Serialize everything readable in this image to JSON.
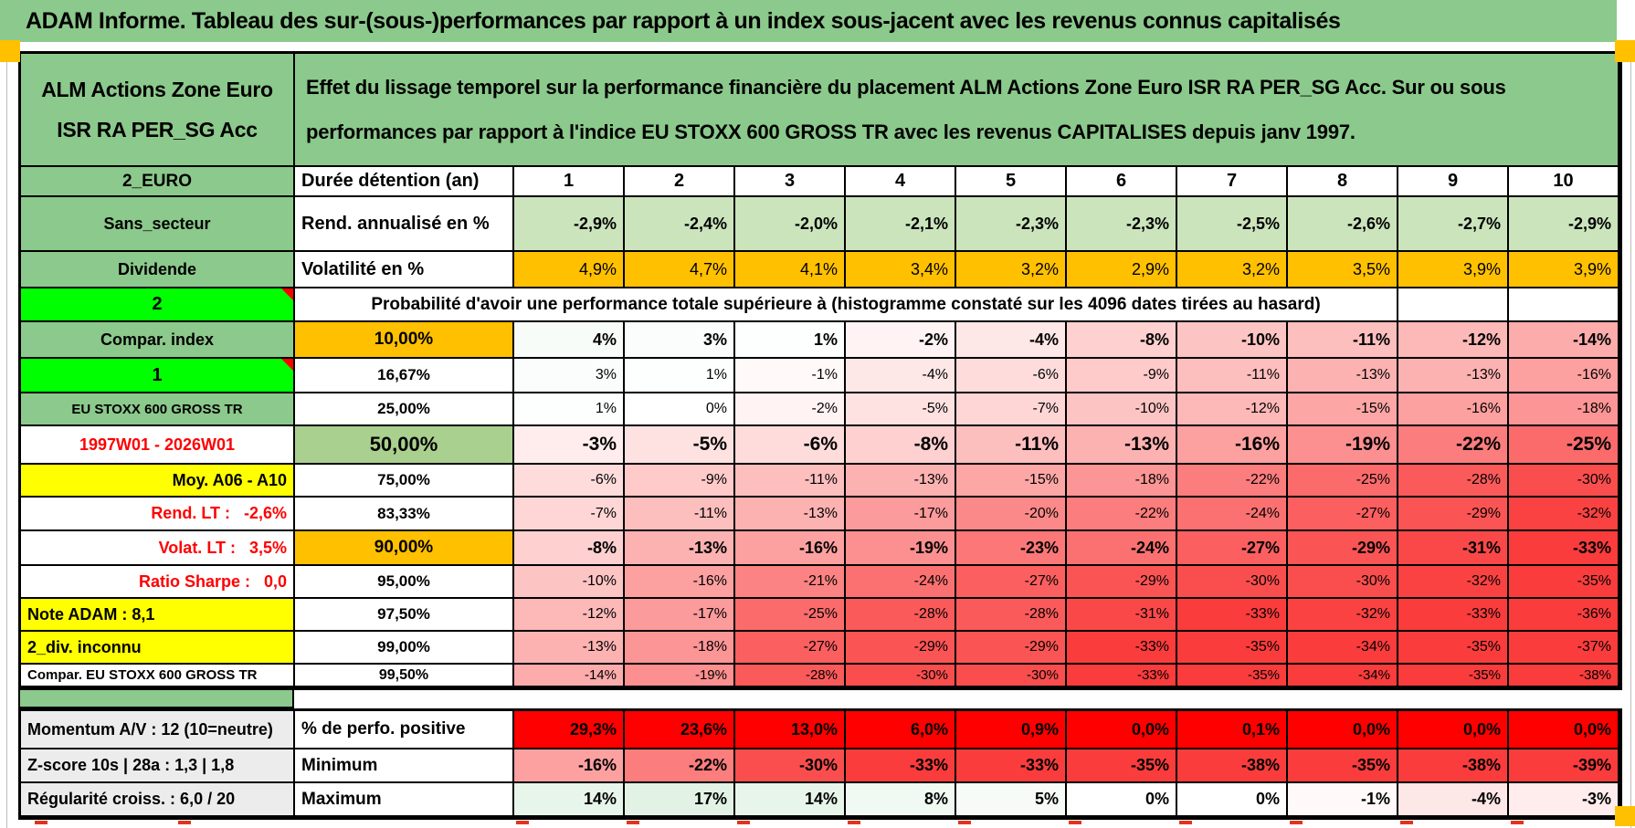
{
  "title": "ADAM Informe. Tableau des sur-(sous-)performances par rapport à un index sous-jacent avec les revenus connus capitalisés",
  "header": {
    "fund_name": "ALM Actions Zone Euro ISR RA PER_SG Acc",
    "description": "Effet du lissage temporel sur la performance financière du placement ALM Actions Zone Euro ISR RA PER_SG Acc. Sur ou sous performances par rapport à l'indice EU STOXX 600 GROSS TR avec les revenus CAPITALISES depuis janv 1997."
  },
  "colors": {
    "header_green": "#8cc98c",
    "light_green": "#cbe4bc",
    "green_50": "#a9d08e",
    "orange": "#ffc000",
    "lime": "#00ff00",
    "yellow": "#ffff00",
    "gray": "#ececec",
    "red": "#fe0000",
    "red_text": "#ff0000",
    "neg_scale_max": "#fa3c3c",
    "pos_scale_max": "#63be7b",
    "white": "#ffffff"
  },
  "table": {
    "duration_row": {
      "col_a": "2_EURO",
      "label": "Durée détention (an)",
      "years": [
        "1",
        "2",
        "3",
        "4",
        "5",
        "6",
        "7",
        "8",
        "9",
        "10"
      ]
    },
    "metric_rows": [
      {
        "col_a": "Sans_secteur",
        "label": "Rend. annualisé en %",
        "cell_bg": "light_green",
        "bold_values": true,
        "values": [
          "-2,9%",
          "-2,4%",
          "-2,0%",
          "-2,1%",
          "-2,3%",
          "-2,3%",
          "-2,5%",
          "-2,6%",
          "-2,7%",
          "-2,9%"
        ]
      },
      {
        "col_a": "Dividende",
        "label": "Volatilité en %",
        "cell_bg": "orange",
        "bold_values": false,
        "values": [
          "4,9%",
          "4,7%",
          "4,1%",
          "3,4%",
          "3,2%",
          "2,9%",
          "3,2%",
          "3,5%",
          "3,9%",
          "3,9%"
        ]
      }
    ],
    "probability_banner": {
      "col_a": "2",
      "comment": true,
      "text": "Probabilité d'avoir une performance totale supérieure à (histogramme constaté sur les 4096 dates tirées au hasard)"
    },
    "probability_rows": [
      {
        "col_a": "Compar. index",
        "col_a_bg": "green",
        "pct": "10,00%",
        "pct_bg": "orange",
        "bold": true,
        "values": [
          "4%",
          "3%",
          "1%",
          "-2%",
          "-4%",
          "-8%",
          "-10%",
          "-11%",
          "-12%",
          "-14%"
        ]
      },
      {
        "col_a": "1",
        "col_a_bg": "lime",
        "comment": true,
        "pct": "16,67%",
        "pct_bg": "white",
        "values": [
          "3%",
          "1%",
          "-1%",
          "-4%",
          "-6%",
          "-9%",
          "-11%",
          "-13%",
          "-13%",
          "-16%"
        ]
      },
      {
        "col_a": "EU STOXX 600 GROSS TR",
        "col_a_bg": "green",
        "col_a_small": true,
        "pct": "25,00%",
        "pct_bg": "white",
        "values": [
          "1%",
          "0%",
          "-2%",
          "-5%",
          "-7%",
          "-10%",
          "-12%",
          "-15%",
          "-16%",
          "-18%"
        ]
      },
      {
        "col_a": "1997W01 - 2026W01",
        "col_a_bg": "white",
        "col_a_red": true,
        "pct": "50,00%",
        "pct_bg": "green_50",
        "bold": true,
        "big": true,
        "values": [
          "-3%",
          "-5%",
          "-6%",
          "-8%",
          "-11%",
          "-13%",
          "-16%",
          "-19%",
          "-22%",
          "-25%"
        ]
      },
      {
        "col_a": "Moy. A06 - A10",
        "col_a_bg": "yellow",
        "col_a_align": "right",
        "pct": "75,00%",
        "pct_bg": "white",
        "values": [
          "-6%",
          "-9%",
          "-11%",
          "-13%",
          "-15%",
          "-18%",
          "-22%",
          "-25%",
          "-28%",
          "-30%"
        ]
      },
      {
        "col_a": "Rend. LT :   -2,6%",
        "col_a_bg": "white",
        "col_a_red": true,
        "col_a_align": "right",
        "pct": "83,33%",
        "pct_bg": "white",
        "values": [
          "-7%",
          "-11%",
          "-13%",
          "-17%",
          "-20%",
          "-22%",
          "-24%",
          "-27%",
          "-29%",
          "-32%"
        ]
      },
      {
        "col_a": "Volat. LT :   3,5%",
        "col_a_bg": "white",
        "col_a_red": true,
        "col_a_align": "right",
        "pct": "90,00%",
        "pct_bg": "orange",
        "bold": true,
        "values": [
          "-8%",
          "-13%",
          "-16%",
          "-19%",
          "-23%",
          "-24%",
          "-27%",
          "-29%",
          "-31%",
          "-33%"
        ]
      },
      {
        "col_a": "Ratio Sharpe :   0,0",
        "col_a_bg": "white",
        "col_a_red": true,
        "col_a_align": "right",
        "pct": "95,00%",
        "pct_bg": "white",
        "values": [
          "-10%",
          "-16%",
          "-21%",
          "-24%",
          "-27%",
          "-29%",
          "-30%",
          "-30%",
          "-32%",
          "-35%"
        ]
      },
      {
        "col_a": "Note ADAM : 8,1",
        "col_a_bg": "yellow",
        "col_a_align": "left",
        "pct": "97,50%",
        "pct_bg": "white",
        "values": [
          "-12%",
          "-17%",
          "-25%",
          "-28%",
          "-28%",
          "-31%",
          "-33%",
          "-32%",
          "-33%",
          "-36%"
        ]
      },
      {
        "col_a": "2_div. inconnu",
        "col_a_bg": "yellow",
        "col_a_align": "left",
        "pct": "99,00%",
        "pct_bg": "white",
        "values": [
          "-13%",
          "-18%",
          "-27%",
          "-29%",
          "-29%",
          "-33%",
          "-35%",
          "-34%",
          "-35%",
          "-37%"
        ]
      },
      {
        "col_a": "Compar. EU STOXX 600 GROSS TR",
        "col_a_bg": "white",
        "col_a_small": true,
        "col_a_align": "left",
        "small": true,
        "pct": "99,50%",
        "pct_bg": "white",
        "values": [
          "-14%",
          "-19%",
          "-28%",
          "-30%",
          "-30%",
          "-33%",
          "-35%",
          "-34%",
          "-35%",
          "-38%"
        ]
      }
    ],
    "stats_rows": [
      {
        "col_a": "Momentum A/V : 12 (10=neutre)",
        "label": "% de perfo. positive",
        "cell_bg": "red",
        "values": [
          "29,3%",
          "23,6%",
          "13,0%",
          "6,0%",
          "0,9%",
          "0,0%",
          "0,1%",
          "0,0%",
          "0,0%",
          "0,0%"
        ]
      },
      {
        "col_a": "Z-score 10s | 28a : 1,3 | 1,8",
        "label": "Minimum",
        "cell_bg": "scale",
        "values": [
          "-16%",
          "-22%",
          "-30%",
          "-33%",
          "-33%",
          "-35%",
          "-38%",
          "-35%",
          "-38%",
          "-39%"
        ]
      },
      {
        "col_a": "Régularité croiss. : 6,0 / 20",
        "label": "Maximum",
        "cell_bg": "scale",
        "values": [
          "14%",
          "17%",
          "14%",
          "8%",
          "5%",
          "0%",
          "0%",
          "-1%",
          "-4%",
          "-3%"
        ]
      }
    ]
  }
}
